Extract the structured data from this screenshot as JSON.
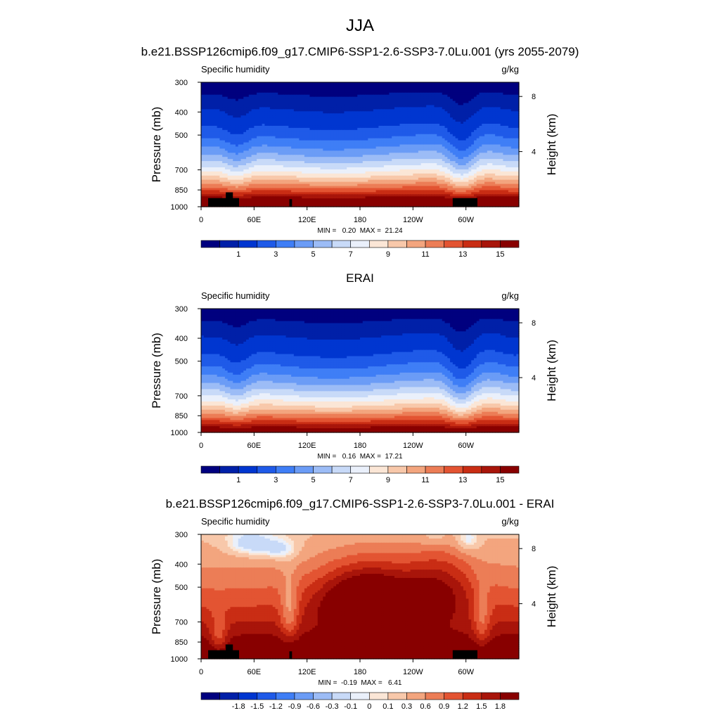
{
  "figure": {
    "season": "JJA",
    "main_title": "b.e21.BSSP126cmip6.f09_g17.CMIP6-SSP1-2.6-SSP3-7.0Lu.001 (yrs 2055-2079)"
  },
  "palette": {
    "colors": [
      "#00007f",
      "#0020a8",
      "#0036d0",
      "#1f5ae8",
      "#3f7ef6",
      "#6b9cf6",
      "#9cbcf6",
      "#c8daf8",
      "#eaf0fb",
      "#fbe6d6",
      "#f8c8aa",
      "#f3a57e",
      "#ec7d56",
      "#e35432",
      "#c92d14",
      "#a8150a",
      "#880000"
    ],
    "land_mask": "#000000"
  },
  "chart_data": [
    {
      "type": "heatmap",
      "title": "",
      "left_label": "Specific humidity",
      "right_label": "g/kg",
      "ylabel": "Pressure (mb)",
      "y2label": "Height (km)",
      "x_ticks": [
        "0",
        "60E",
        "120E",
        "180",
        "120W",
        "60W"
      ],
      "x_tick_values": [
        0,
        60,
        120,
        180,
        240,
        300
      ],
      "xlim": [
        0,
        360
      ],
      "y_ticks": [
        "300",
        "400",
        "500",
        "700",
        "850",
        "1000"
      ],
      "y_tick_values": [
        300,
        400,
        500,
        700,
        850,
        1000
      ],
      "ylim": [
        1000,
        300
      ],
      "log_scale_y": true,
      "y2_ticks": [
        "8",
        "4"
      ],
      "y2_tick_values": [
        8,
        4
      ],
      "min_max_text": "MIN =   0.20  MAX =  21.24",
      "min": 0.2,
      "max": 21.24,
      "levels": [
        0.5,
        1,
        2,
        3,
        4,
        5,
        6,
        7,
        8,
        9,
        10,
        11,
        12,
        13,
        14,
        15
      ],
      "colorbar_labels": [
        "1",
        "3",
        "5",
        "7",
        "9",
        "11",
        "13",
        "15"
      ],
      "colorbar_label_values": [
        1,
        3,
        5,
        7,
        9,
        11,
        13,
        15
      ],
      "has_land_mask": true
    },
    {
      "type": "heatmap",
      "title": "ERAI",
      "left_label": "Specific humidity",
      "right_label": "g/kg",
      "ylabel": "Pressure (mb)",
      "y2label": "Height (km)",
      "x_ticks": [
        "0",
        "60E",
        "120E",
        "180",
        "120W",
        "60W"
      ],
      "x_tick_values": [
        0,
        60,
        120,
        180,
        240,
        300
      ],
      "xlim": [
        0,
        360
      ],
      "y_ticks": [
        "300",
        "400",
        "500",
        "700",
        "850",
        "1000"
      ],
      "y_tick_values": [
        300,
        400,
        500,
        700,
        850,
        1000
      ],
      "ylim": [
        1000,
        300
      ],
      "log_scale_y": true,
      "y2_ticks": [
        "8",
        "4"
      ],
      "y2_tick_values": [
        8,
        4
      ],
      "min_max_text": "MIN =   0.16  MAX =  17.21",
      "min": 0.16,
      "max": 17.21,
      "levels": [
        0.5,
        1,
        2,
        3,
        4,
        5,
        6,
        7,
        8,
        9,
        10,
        11,
        12,
        13,
        14,
        15
      ],
      "colorbar_labels": [
        "1",
        "3",
        "5",
        "7",
        "9",
        "11",
        "13",
        "15"
      ],
      "colorbar_label_values": [
        1,
        3,
        5,
        7,
        9,
        11,
        13,
        15
      ],
      "has_land_mask": false
    },
    {
      "type": "heatmap",
      "title": "b.e21.BSSP126cmip6.f09_g17.CMIP6-SSP1-2.6-SSP3-7.0Lu.001 - ERAI",
      "left_label": "Specific humidity",
      "right_label": "g/kg",
      "ylabel": "Pressure (mb)",
      "y2label": "Height (km)",
      "x_ticks": [
        "0",
        "60E",
        "120E",
        "180",
        "120W",
        "60W"
      ],
      "x_tick_values": [
        0,
        60,
        120,
        180,
        240,
        300
      ],
      "xlim": [
        0,
        360
      ],
      "y_ticks": [
        "300",
        "400",
        "500",
        "700",
        "850",
        "1000"
      ],
      "y_tick_values": [
        300,
        400,
        500,
        700,
        850,
        1000
      ],
      "ylim": [
        1000,
        300
      ],
      "log_scale_y": true,
      "y2_ticks": [
        "8",
        "4"
      ],
      "y2_tick_values": [
        8,
        4
      ],
      "min_max_text": "MIN =  -0.19  MAX =   6.41",
      "min": -0.19,
      "max": 6.41,
      "levels": [
        -2.1,
        -1.8,
        -1.5,
        -1.2,
        -0.9,
        -0.6,
        -0.3,
        -0.1,
        0,
        0.1,
        0.3,
        0.6,
        0.9,
        1.2,
        1.5,
        1.8
      ],
      "colorbar_labels": [
        "-1.8",
        "-1.5",
        "-1.2",
        "-0.9",
        "-0.6",
        "-0.3",
        "-0.1",
        "0",
        "0.1",
        "0.3",
        "0.6",
        "0.9",
        "1.2",
        "1.5",
        "1.8"
      ],
      "colorbar_label_values": [
        -1.8,
        -1.5,
        -1.2,
        -0.9,
        -0.6,
        -0.3,
        -0.1,
        0,
        0.1,
        0.3,
        0.6,
        0.9,
        1.2,
        1.5,
        1.8
      ],
      "has_land_mask": true
    }
  ]
}
